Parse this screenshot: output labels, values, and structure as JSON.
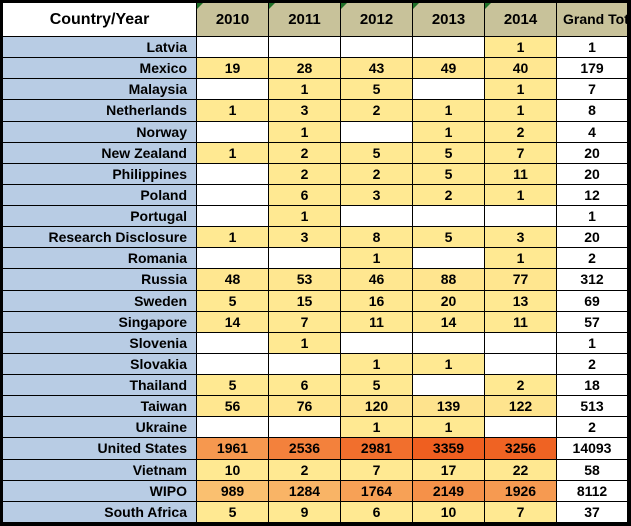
{
  "table": {
    "corner_header": "Country/Year",
    "year_headers": [
      "2010",
      "2011",
      "2012",
      "2013",
      "2014"
    ],
    "grand_total_header": "Grand Total",
    "rows": [
      {
        "country": "Latvia",
        "values": [
          "",
          "",
          "",
          "",
          "1"
        ],
        "total": "1"
      },
      {
        "country": "Mexico",
        "values": [
          "19",
          "28",
          "43",
          "49",
          "40"
        ],
        "total": "179"
      },
      {
        "country": "Malaysia",
        "values": [
          "",
          "1",
          "5",
          "",
          "1"
        ],
        "total": "7"
      },
      {
        "country": "Netherlands",
        "values": [
          "1",
          "3",
          "2",
          "1",
          "1"
        ],
        "total": "8"
      },
      {
        "country": "Norway",
        "values": [
          "",
          "1",
          "",
          "1",
          "2"
        ],
        "total": "4"
      },
      {
        "country": "New Zealand",
        "values": [
          "1",
          "2",
          "5",
          "5",
          "7"
        ],
        "total": "20"
      },
      {
        "country": "Philippines",
        "values": [
          "",
          "2",
          "2",
          "5",
          "11"
        ],
        "total": "20"
      },
      {
        "country": "Poland",
        "values": [
          "",
          "6",
          "3",
          "2",
          "1"
        ],
        "total": "12"
      },
      {
        "country": "Portugal",
        "values": [
          "",
          "1",
          "",
          "",
          ""
        ],
        "total": "1"
      },
      {
        "country": "Research Disclosure",
        "values": [
          "1",
          "3",
          "8",
          "5",
          "3"
        ],
        "total": "20"
      },
      {
        "country": "Romania",
        "values": [
          "",
          "",
          "1",
          "",
          "1"
        ],
        "total": "2"
      },
      {
        "country": "Russia",
        "values": [
          "48",
          "53",
          "46",
          "88",
          "77"
        ],
        "total": "312"
      },
      {
        "country": "Sweden",
        "values": [
          "5",
          "15",
          "16",
          "20",
          "13"
        ],
        "total": "69"
      },
      {
        "country": "Singapore",
        "values": [
          "14",
          "7",
          "11",
          "14",
          "11"
        ],
        "total": "57"
      },
      {
        "country": "Slovenia",
        "values": [
          "",
          "1",
          "",
          "",
          ""
        ],
        "total": "1"
      },
      {
        "country": "Slovakia",
        "values": [
          "",
          "",
          "1",
          "1",
          ""
        ],
        "total": "2"
      },
      {
        "country": "Thailand",
        "values": [
          "5",
          "6",
          "5",
          "",
          "2"
        ],
        "total": "18"
      },
      {
        "country": "Taiwan",
        "values": [
          "56",
          "76",
          "120",
          "139",
          "122"
        ],
        "total": "513"
      },
      {
        "country": "Ukraine",
        "values": [
          "",
          "",
          "1",
          "1",
          ""
        ],
        "total": "2"
      },
      {
        "country": "United States",
        "values": [
          "1961",
          "2536",
          "2981",
          "3359",
          "3256"
        ],
        "total": "14093"
      },
      {
        "country": "Vietnam",
        "values": [
          "10",
          "2",
          "7",
          "17",
          "22"
        ],
        "total": "58"
      },
      {
        "country": "WIPO",
        "values": [
          "989",
          "1284",
          "1764",
          "2149",
          "1926"
        ],
        "total": "8112"
      },
      {
        "country": "South Africa",
        "values": [
          "5",
          "9",
          "6",
          "10",
          "7"
        ],
        "total": "37"
      }
    ],
    "colors": {
      "header_bg": "#C8C29A",
      "country_bg": "#B8CCE4",
      "empty_cell_bg": "#FFFFFF",
      "grand_total_bg": "#FFFFFF",
      "grid_border": "#000000",
      "flag_triangle": "#1E7028",
      "value_scale_min_color": "#FFE992",
      "value_scale_max_color": "#EF5F20",
      "value_scale_min": 1,
      "value_scale_max": 3359
    }
  }
}
